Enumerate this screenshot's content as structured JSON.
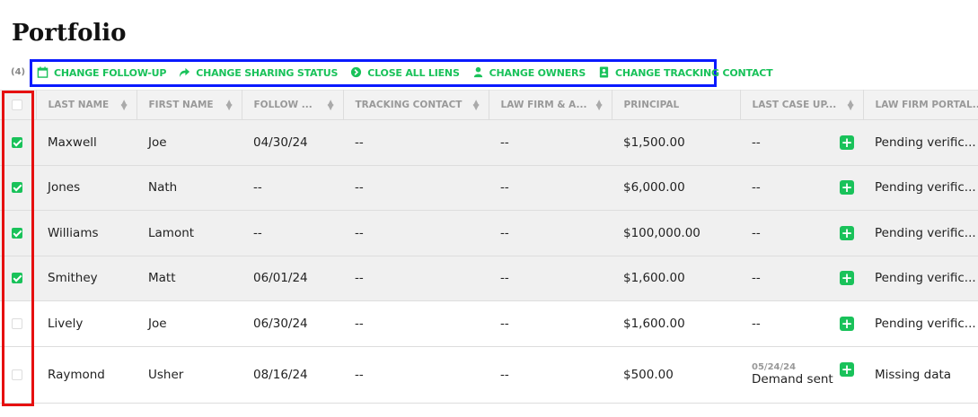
{
  "page": {
    "title": "Portfolio",
    "selected_count": "(4)"
  },
  "toolbar": [
    {
      "label": "CHANGE FOLLOW-UP",
      "icon": "calendar-icon"
    },
    {
      "label": "CHANGE SHARING STATUS",
      "icon": "share-arrow-icon"
    },
    {
      "label": "CLOSE ALL LIENS",
      "icon": "circle-arrow-icon"
    },
    {
      "label": "CHANGE OWNERS",
      "icon": "user-icon"
    },
    {
      "label": "CHANGE TRACKING CONTACT",
      "icon": "contact-book-icon"
    }
  ],
  "columns": [
    "LAST NAME",
    "FIRST NAME",
    "FOLLOW ...",
    "TRACKING CONTACT",
    "LAW FIRM & A...",
    "PRINCIPAL",
    "LAST CASE UP...",
    "LAW FIRM PORTAL..."
  ],
  "rows": [
    {
      "checked": true,
      "last": "Maxwell",
      "first": "Joe",
      "follow": "04/30/24",
      "tracking": "--",
      "firm": "--",
      "principal": "$1,500.00",
      "upd_date": "",
      "upd": "--",
      "portal": "Pending verific..."
    },
    {
      "checked": true,
      "last": "Jones",
      "first": "Nath",
      "follow": "--",
      "tracking": "--",
      "firm": "--",
      "principal": "$6,000.00",
      "upd_date": "",
      "upd": "--",
      "portal": "Pending verific..."
    },
    {
      "checked": true,
      "last": "Williams",
      "first": "Lamont",
      "follow": "--",
      "tracking": "--",
      "firm": "--",
      "principal": "$100,000.00",
      "upd_date": "",
      "upd": "--",
      "portal": "Pending verific..."
    },
    {
      "checked": true,
      "last": "Smithey",
      "first": "Matt",
      "follow": "06/01/24",
      "tracking": "--",
      "firm": "--",
      "principal": "$1,600.00",
      "upd_date": "",
      "upd": "--",
      "portal": "Pending verific..."
    },
    {
      "checked": false,
      "last": "Lively",
      "first": "Joe",
      "follow": "06/30/24",
      "tracking": "--",
      "firm": "--",
      "principal": "$1,600.00",
      "upd_date": "",
      "upd": "--",
      "portal": "Pending verific..."
    },
    {
      "checked": false,
      "last": "Raymond",
      "first": "Usher",
      "follow": "08/16/24",
      "tracking": "--",
      "firm": "--",
      "principal": "$500.00",
      "upd_date": "05/24/24",
      "upd": "Demand sent",
      "portal": "Missing data"
    }
  ],
  "colors": {
    "accent": "#19c25a",
    "toolbar_highlight": "#0a1aff",
    "checkbox_highlight": "#e61010"
  }
}
